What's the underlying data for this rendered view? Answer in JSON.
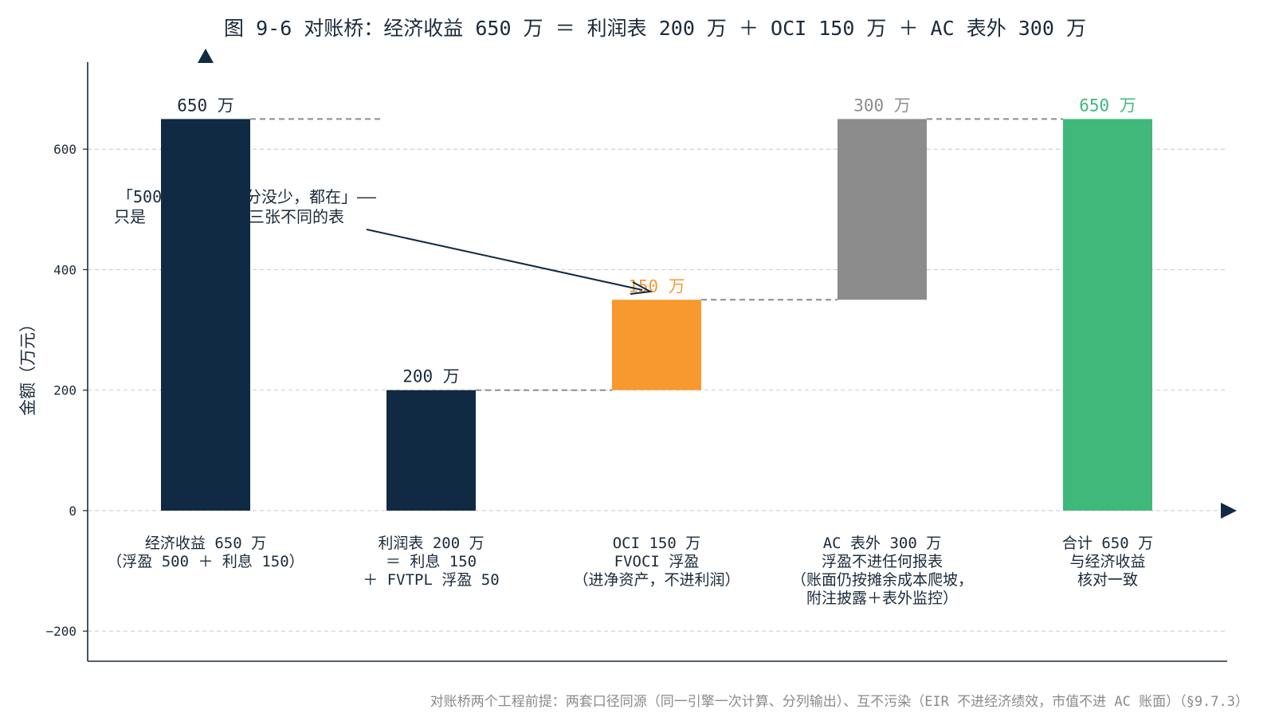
{
  "colors": {
    "navy": "#102a43",
    "orange": "#f7992f",
    "gray": "#8c8c8c",
    "green": "#3fb87a",
    "grid": "#cfcfcf",
    "connector": "#8c8c8c",
    "footnote": "#8a8a8a"
  },
  "chart_data": {
    "type": "bar",
    "title": "图 9-6 对账桥：经济收益 650 万 ＝ 利润表 200 万 ＋ OCI 150 万 ＋ AC 表外 300 万",
    "ylabel": "金额（万元）",
    "ylim": [
      -250,
      755
    ],
    "yticks": [
      -200,
      0,
      200,
      400,
      600
    ],
    "grid": true,
    "bars": [
      {
        "start": 0,
        "end": 650,
        "value_label": "650 万",
        "color": "navy",
        "label_color": "#1b2a3a",
        "category_lines": [
          "经济收益 650 万",
          "（浮盈 500 ＋ 利息 150）"
        ]
      },
      {
        "start": 0,
        "end": 200,
        "value_label": "200 万",
        "color": "navy",
        "label_color": "#1b2a3a",
        "category_lines": [
          "利润表 200 万",
          "＝ 利息 150",
          "＋ FVTPL 浮盈 50"
        ]
      },
      {
        "start": 200,
        "end": 350,
        "value_label": "150 万",
        "color": "orange",
        "label_color": "#f7992f",
        "category_lines": [
          "OCI 150 万",
          "FVOCI 浮盈",
          "（进净资产，不进利润）"
        ]
      },
      {
        "start": 350,
        "end": 650,
        "value_label": "300 万",
        "color": "gray",
        "label_color": "#8c8c8c",
        "category_lines": [
          "AC 表外 300 万",
          "浮盈不进任何报表",
          "（账面仍按摊余成本爬坡，",
          "附注披露＋表外监控）"
        ]
      },
      {
        "start": 0,
        "end": 650,
        "value_label": "650 万",
        "color": "green",
        "label_color": "#3fb87a",
        "category_lines": [
          "合计 650 万",
          "与经济收益",
          "核对一致"
        ]
      }
    ],
    "connectors": [
      {
        "from_bar": 0,
        "to_x_data": 0.78,
        "value": 650
      },
      {
        "from_bar": 1,
        "to_bar": 2,
        "value": 200
      },
      {
        "from_bar": 2,
        "to_bar": 3,
        "value": 350
      },
      {
        "from_bar": 3,
        "to_bar": 4,
        "value": 650
      }
    ],
    "annotation": {
      "lines": [
        "「500",
        "分没少，都在」——",
        "只是",
        "三张不同的表"
      ],
      "points_to_bar": 2
    }
  },
  "footnote": "对账桥两个工程前提：两套口径同源（同一引擎一次计算、分列输出）、互不污染（EIR 不进经济绩效，市值不进 AC 账面）（§9.7.3）"
}
